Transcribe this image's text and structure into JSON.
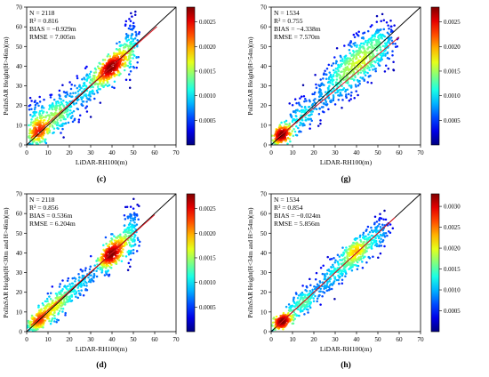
{
  "chart_data": [
    {
      "type": "scatter",
      "panel_label": "(c)",
      "xlabel": "LiDAR-RH100(m)",
      "ylabel": "PolInSAR Height(H>46m)(m)",
      "xlim": [
        0,
        70
      ],
      "ylim": [
        0,
        70
      ],
      "xticks": [
        0,
        10,
        20,
        30,
        40,
        50,
        60,
        70
      ],
      "yticks": [
        0,
        10,
        20,
        30,
        40,
        50,
        60,
        70
      ],
      "stats": {
        "n": "N = 2118",
        "r2": "R² = 0.816",
        "bias": "BIAS = −0.929m",
        "rmse": "RMSE = 7.005m"
      },
      "colorbar": {
        "range": [
          0.0,
          0.0028
        ],
        "ticks": [
          0.0005,
          0.001,
          0.0015,
          0.002,
          0.0025
        ],
        "tick_labels": [
          "0.0005",
          "0.0010",
          "0.0015",
          "0.0020",
          "0.0025"
        ]
      },
      "fit_line": {
        "slope": 0.96,
        "intercept": 1.5,
        "x_range": [
          2,
          61
        ]
      },
      "one_to_one": true,
      "clusters": [
        {
          "cx": 5,
          "cy": 6,
          "sx": 2.5,
          "sy": 4,
          "n": 200,
          "rho": 0.3
        },
        {
          "cx": 15,
          "cy": 16,
          "sx": 5,
          "sy": 6,
          "n": 230,
          "rho": 0.5
        },
        {
          "cx": 28,
          "cy": 28,
          "sx": 4,
          "sy": 6,
          "n": 120,
          "rho": 0.5
        },
        {
          "cx": 40,
          "cy": 40,
          "sx": 4,
          "sy": 5,
          "n": 380,
          "rho": 0.7
        },
        {
          "cx": 49,
          "cy": 50,
          "sx": 2,
          "sy": 7,
          "n": 120,
          "rho": 0.2
        },
        {
          "cx": 4,
          "cy": 14,
          "sx": 2,
          "sy": 6,
          "n": 60,
          "rho": 0
        }
      ]
    },
    {
      "type": "scatter",
      "panel_label": "(g)",
      "xlabel": "LiDAR-RH100(m)",
      "ylabel": "PolInSAR Height(H>54m)(m)",
      "xlim": [
        0,
        70
      ],
      "ylim": [
        0,
        70
      ],
      "xticks": [
        0,
        10,
        20,
        30,
        40,
        50,
        60,
        70
      ],
      "yticks": [
        0,
        10,
        20,
        30,
        40,
        50,
        60,
        70
      ],
      "stats": {
        "n": "N = 1534",
        "r2": "R² = 0.755",
        "bias": "BIAS = −4.338m",
        "rmse": "RMSE = 7.570m"
      },
      "colorbar": {
        "range": [
          0.0,
          0.0028
        ],
        "ticks": [
          0.0005,
          0.001,
          0.0015,
          0.002,
          0.0025
        ],
        "tick_labels": [
          "0.0005",
          "0.0010",
          "0.0015",
          "0.0020",
          "0.0025"
        ]
      },
      "fit_line": {
        "slope": 0.9,
        "intercept": 0.8,
        "x_range": [
          2,
          60
        ]
      },
      "one_to_one": true,
      "clusters": [
        {
          "cx": 5,
          "cy": 5,
          "sx": 2,
          "sy": 2.5,
          "n": 220,
          "rho": 0.5
        },
        {
          "cx": 15,
          "cy": 15,
          "sx": 5,
          "sy": 6,
          "n": 160,
          "rho": 0.6
        },
        {
          "cx": 32,
          "cy": 33,
          "sx": 6,
          "sy": 7,
          "n": 250,
          "rho": 0.6
        },
        {
          "cx": 42,
          "cy": 43,
          "sx": 6,
          "sy": 7,
          "n": 320,
          "rho": 0.5
        },
        {
          "cx": 52,
          "cy": 50,
          "sx": 4,
          "sy": 7,
          "n": 120,
          "rho": 0.3
        }
      ]
    },
    {
      "type": "scatter",
      "panel_label": "(d)",
      "xlabel": "LiDAR-RH100(m)",
      "ylabel": "PolInSAR Height(H<30m and H>46m)(m)",
      "xlim": [
        0,
        70
      ],
      "ylim": [
        0,
        70
      ],
      "xticks": [
        0,
        10,
        20,
        30,
        40,
        50,
        60,
        70
      ],
      "yticks": [
        0,
        10,
        20,
        30,
        40,
        50,
        60,
        70
      ],
      "stats": {
        "n": "N = 2118",
        "r2": "R² = 0.856",
        "bias": "BIAS = 0.536m",
        "rmse": "RMSE = 6.204m"
      },
      "colorbar": {
        "range": [
          0.0,
          0.0028
        ],
        "ticks": [
          0.0005,
          0.001,
          0.0015,
          0.002,
          0.0025
        ],
        "tick_labels": [
          "0.0005",
          "0.0010",
          "0.0015",
          "0.0020",
          "0.0025"
        ]
      },
      "fit_line": {
        "slope": 0.97,
        "intercept": 1.2,
        "x_range": [
          2,
          60
        ]
      },
      "one_to_one": true,
      "clusters": [
        {
          "cx": 5,
          "cy": 5,
          "sx": 2.5,
          "sy": 3,
          "n": 200,
          "rho": 0.5
        },
        {
          "cx": 14,
          "cy": 14,
          "sx": 4,
          "sy": 5,
          "n": 200,
          "rho": 0.6
        },
        {
          "cx": 25,
          "cy": 25,
          "sx": 4,
          "sy": 4,
          "n": 100,
          "rho": 0.6
        },
        {
          "cx": 40,
          "cy": 40,
          "sx": 4,
          "sy": 5,
          "n": 380,
          "rho": 0.7
        },
        {
          "cx": 49,
          "cy": 50,
          "sx": 2,
          "sy": 7,
          "n": 120,
          "rho": 0.2
        }
      ]
    },
    {
      "type": "scatter",
      "panel_label": "(h)",
      "xlabel": "LiDAR-RH100(m)",
      "ylabel": "PolInSAR Height(H<34m and H>54m)(m)",
      "xlim": [
        0,
        70
      ],
      "ylim": [
        0,
        70
      ],
      "xticks": [
        0,
        10,
        20,
        30,
        40,
        50,
        60,
        70
      ],
      "yticks": [
        0,
        10,
        20,
        30,
        40,
        50,
        60,
        70
      ],
      "stats": {
        "n": "N = 1534",
        "r2": "R² = 0.854",
        "bias": "BIAS = −0.024m",
        "rmse": "RMSE = 5.856m"
      },
      "colorbar": {
        "range": [
          0.0,
          0.0033
        ],
        "ticks": [
          0.0005,
          0.001,
          0.0015,
          0.002,
          0.0025,
          0.003
        ],
        "tick_labels": [
          "0.0005",
          "0.0010",
          "0.0015",
          "0.0020",
          "0.0025",
          "0.0030"
        ]
      },
      "fit_line": {
        "slope": 1.0,
        "intercept": 0.0,
        "x_range": [
          2,
          58
        ]
      },
      "one_to_one": true,
      "clusters": [
        {
          "cx": 5,
          "cy": 5,
          "sx": 2,
          "sy": 2,
          "n": 240,
          "rho": 0.6
        },
        {
          "cx": 15,
          "cy": 15,
          "sx": 4,
          "sy": 4.5,
          "n": 180,
          "rho": 0.7
        },
        {
          "cx": 28,
          "cy": 28,
          "sx": 4,
          "sy": 5,
          "n": 140,
          "rho": 0.6
        },
        {
          "cx": 40,
          "cy": 40,
          "sx": 4,
          "sy": 5,
          "n": 300,
          "rho": 0.6
        },
        {
          "cx": 50,
          "cy": 50,
          "sx": 3,
          "sy": 5,
          "n": 100,
          "rho": 0.4
        }
      ]
    }
  ]
}
